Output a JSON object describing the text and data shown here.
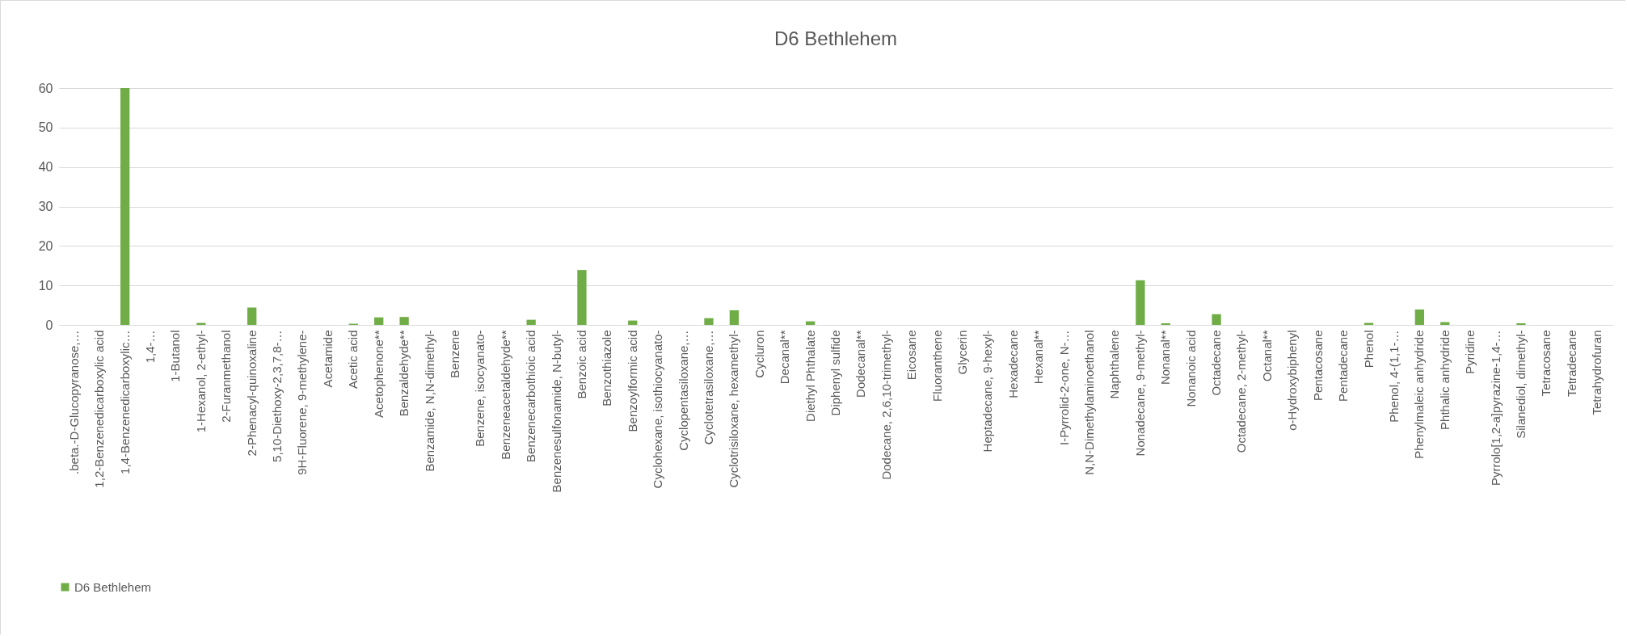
{
  "chart_data": {
    "type": "bar",
    "title": "D6 Bethlehem",
    "categories": [
      ".beta.-D-Glucopyranose,…",
      "1,2-Benzenedicarboxylic acid",
      "1,4-Benzenedicarboxylic…",
      "1,4-…",
      "1-Butanol",
      "1-Hexanol, 2-ethyl-",
      "2-Furanmethanol",
      "2-Phenacyl-quinoxaline",
      "5,10-Diethoxy-2,3,7,8-…",
      "9H-Fluorene, 9-methylene-",
      "Acetamide",
      "Acetic acid",
      "Acetophenone**",
      "Benzaldehyde**",
      "Benzamide, N,N-dimethyl-",
      "Benzene",
      "Benzene, isocyanato-",
      "Benzeneacetaldehyde**",
      "Benzenecarbothioic acid",
      "Benzenesulfonamide, N-butyl-",
      "Benzoic acid",
      "Benzothiazole",
      "Benzoylformic acid",
      "Cyclohexane, isothiocyanato-",
      "Cyclopentasiloxane,…",
      "Cyclotetrasiloxane,…",
      "Cyclotrisiloxane, hexamethyl-",
      "Cycluron",
      "Decanal**",
      "Diethyl Phthalate",
      "Diphenyl sulfide",
      "Dodecanal**",
      "Dodecane, 2,6,10-trimethyl-",
      "Eicosane",
      "Fluoranthene",
      "Glycerin",
      "Heptadecane, 9-hexyl-",
      "Hexadecane",
      "Hexanal**",
      "I-Pyrrolid-2-one, N-…",
      "N,N-Dimethylaminoethanol",
      "Naphthalene",
      "Nonadecane, 9-methyl-",
      "Nonanal**",
      "Nonanoic acid",
      "Octadecane",
      "Octadecane, 2-methyl-",
      "Octanal**",
      "o-Hydroxybiphenyl",
      "Pentacosane",
      "Pentadecane",
      "Phenol",
      "Phenol, 4-(1,1-…",
      "Phenylmaleic anhydride",
      "Phthalic anhydride",
      "Pyridine",
      "Pyrrolo[1,2-a]pyrazine-1,4-…",
      "Silanediol, dimethyl-",
      "Tetracosane",
      "Tetradecane",
      "Tetrahydrofuran"
    ],
    "series": [
      {
        "name": "D6 Bethlehem",
        "color": "#70ad47",
        "values": [
          0,
          0,
          60,
          0,
          0,
          0.5,
          0,
          4.4,
          0,
          0,
          0,
          0.3,
          1.9,
          2.0,
          0,
          0,
          0,
          0,
          1.3,
          0,
          13.9,
          0,
          1.1,
          0,
          0,
          1.7,
          3.7,
          0,
          0,
          0.9,
          0,
          0,
          0,
          0,
          0,
          0,
          0,
          0,
          0,
          0,
          0,
          0,
          11.3,
          0.4,
          0,
          2.7,
          0,
          0,
          0,
          0,
          0,
          0.5,
          0,
          3.9,
          0.7,
          0,
          0,
          0.4,
          0,
          0,
          0
        ]
      }
    ],
    "ylim": [
      0,
      60
    ],
    "yticks": [
      0,
      10,
      20,
      30,
      40,
      50,
      60
    ],
    "grid": "y",
    "legend": "bottom"
  }
}
